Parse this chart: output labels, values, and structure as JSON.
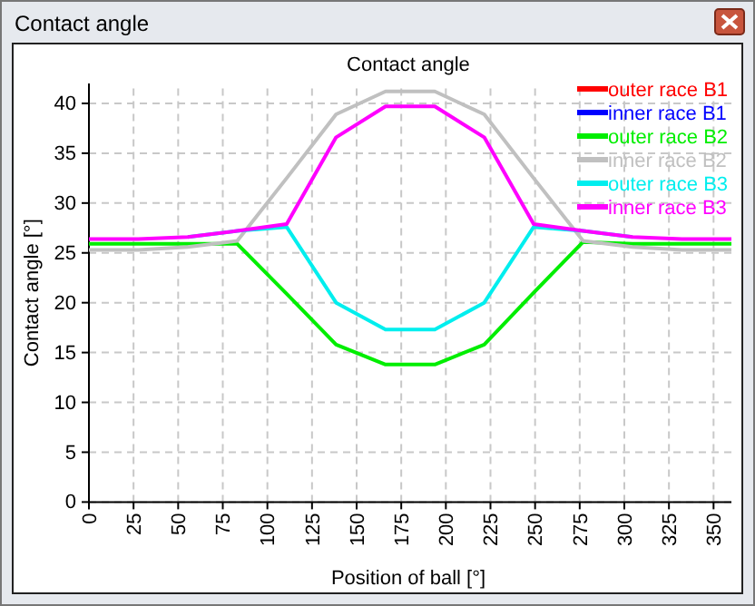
{
  "chart_data": {
    "type": "line",
    "title": "Contact angle",
    "xlabel": "Position of ball [°]",
    "ylabel": "Contact angle [°]",
    "annotations": [
      "Contact angle"
    ],
    "x": [
      0,
      27.7,
      55.4,
      83.1,
      110.8,
      138.5,
      166.2,
      193.8,
      221.5,
      249.2,
      276.9,
      304.6,
      332.3,
      360
    ],
    "xlim": [
      0,
      360
    ],
    "xticks": [
      0,
      25,
      50,
      75,
      100,
      125,
      150,
      175,
      200,
      225,
      250,
      275,
      300,
      325,
      350
    ],
    "ylim": [
      0,
      42
    ],
    "yticks": [
      0,
      5,
      10,
      15,
      20,
      25,
      30,
      35,
      40
    ],
    "grid": true,
    "legend": "top right",
    "marker": "none",
    "line_style": "solid",
    "series": [
      {
        "name": "outer race B1",
        "color": "#ff0000",
        "values": [
          null,
          null,
          null,
          null,
          null,
          null,
          null,
          null,
          null,
          null,
          null,
          null,
          null,
          null
        ]
      },
      {
        "name": "inner race B1",
        "color": "#0000ff",
        "values": [
          null,
          null,
          null,
          null,
          null,
          null,
          null,
          null,
          null,
          null,
          null,
          null,
          null,
          null
        ]
      },
      {
        "name": "outer race B2",
        "color": "#00ee00",
        "values": [
          25.9,
          25.9,
          25.9,
          25.9,
          20.9,
          15.8,
          13.8,
          13.8,
          15.8,
          21,
          26.1,
          25.9,
          25.9,
          25.9
        ]
      },
      {
        "name": "inner race B2",
        "color": "#c0c0c0",
        "values": [
          25.3,
          25.3,
          25.6,
          26.2,
          32.5,
          38.9,
          41.2,
          41.2,
          38.9,
          32.5,
          26.2,
          25.6,
          25.3,
          25.3
        ]
      },
      {
        "name": "outer race B3",
        "color": "#00eeee",
        "values": [
          null,
          null,
          26.6,
          27.2,
          27.6,
          20,
          17.3,
          17.3,
          20,
          27.6,
          27.2,
          26.6,
          null,
          null
        ]
      },
      {
        "name": "inner race B3",
        "color": "#ff00ff",
        "values": [
          26.4,
          26.4,
          26.6,
          27.2,
          27.9,
          36.6,
          39.7,
          39.7,
          36.6,
          27.9,
          27.2,
          26.6,
          26.4,
          26.4
        ]
      }
    ]
  }
}
